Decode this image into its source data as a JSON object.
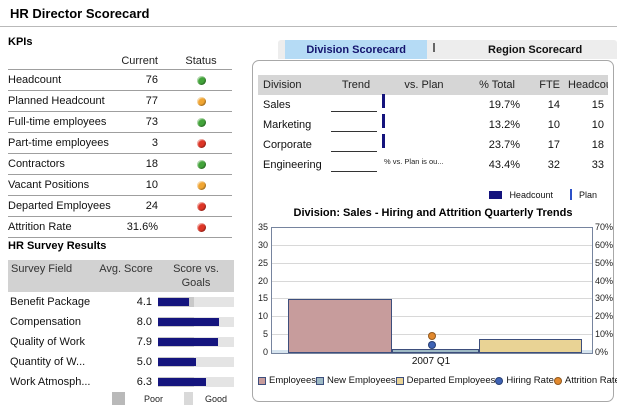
{
  "title": "HR Director Scorecard",
  "status_colors": {
    "green": "#43a33a",
    "yellow": "#f0a532",
    "red": "#dd3526"
  },
  "accent": {
    "tab_active_bg": "#b5dbf5",
    "bar_navy": "#15157e",
    "plan_blue": "#2b50c8"
  },
  "kpis": {
    "heading": "KPIs",
    "columns": {
      "current": "Current",
      "status": "Status"
    },
    "rows": [
      {
        "label": "Headcount",
        "current": "76",
        "status": "green"
      },
      {
        "label": "Planned Headcount",
        "current": "77",
        "status": "yellow"
      },
      {
        "label": "Full-time employees",
        "current": "73",
        "status": "green"
      },
      {
        "label": "Part-time employees",
        "current": "3",
        "status": "red"
      },
      {
        "label": "Contractors",
        "current": "18",
        "status": "green"
      },
      {
        "label": "Vacant Positions",
        "current": "10",
        "status": "yellow"
      },
      {
        "label": "Departed Employees",
        "current": "24",
        "status": "red"
      },
      {
        "label": "Attrition Rate",
        "current": "31.6%",
        "status": "red"
      }
    ]
  },
  "survey": {
    "heading": "HR Survey Results",
    "columns": [
      "Survey Field",
      "Avg. Score",
      "Score vs. Goals"
    ],
    "scale": {
      "min_label": "Poor",
      "max_label": "Good",
      "max": 10
    },
    "rows": [
      {
        "label": "Benefit Package",
        "score": "4.1"
      },
      {
        "label": "Compensation",
        "score": "8.0"
      },
      {
        "label": "Quality of Work",
        "score": "7.9"
      },
      {
        "label": "Quantity of W...",
        "score": "5.0"
      },
      {
        "label": "Work Atmosph...",
        "score": "6.3"
      }
    ]
  },
  "tabs": [
    {
      "label": "Division Scorecard",
      "active": true
    },
    {
      "label": "Region Scorecard",
      "active": false
    }
  ],
  "division_table": {
    "columns": [
      "Division",
      "Trend",
      "vs. Plan",
      "% Total",
      "FTE",
      "Headcoun"
    ],
    "rows": [
      {
        "division": "Sales",
        "vs_plan": {
          "bar": 0.6,
          "tick": 0.58
        },
        "pct_total": "19.7%",
        "fte": "14",
        "headcount": "15"
      },
      {
        "division": "Marketing",
        "vs_plan": {
          "bar": 0.92,
          "tick": 0.63
        },
        "pct_total": "13.2%",
        "fte": "10",
        "headcount": "10"
      },
      {
        "division": "Corporate",
        "vs_plan": {
          "bar": 0.57,
          "tick": 0.63
        },
        "pct_total": "23.7%",
        "fte": "17",
        "headcount": "18"
      },
      {
        "division": "Engineering",
        "vs_plan_note": "% vs. Plan is ou...",
        "pct_total": "43.4%",
        "fte": "32",
        "headcount": "33"
      }
    ],
    "legend": {
      "headcount_label": "Headcount",
      "plan_label": "Plan"
    }
  },
  "chart_data": {
    "type": "bar",
    "title": "Division: Sales - Hiring and Attrition Quarterly Trends",
    "categories": [
      "2007 Q1"
    ],
    "series": [
      {
        "name": "Employees",
        "kind": "bar",
        "axis": "left",
        "values": [
          15
        ],
        "color": "#c79c9c"
      },
      {
        "name": "New Employees",
        "kind": "bar",
        "axis": "left",
        "values": [
          1
        ],
        "color": "#9db9c4"
      },
      {
        "name": "Departed Employees",
        "kind": "bar",
        "axis": "left",
        "values": [
          4
        ],
        "color": "#e9d395"
      },
      {
        "name": "Hiring Rate",
        "kind": "point",
        "axis": "right",
        "values": [
          4.5
        ],
        "color": "#3f63b5"
      },
      {
        "name": "Attrition Rate",
        "kind": "point",
        "axis": "right",
        "values": [
          9.5
        ],
        "color": "#e2892e"
      }
    ],
    "left_axis": {
      "min": 0,
      "max": 35,
      "step": 5
    },
    "right_axis": {
      "min": 0,
      "max": 70,
      "step": 10,
      "suffix": "%"
    },
    "grid": true,
    "legend_position": "bottom"
  }
}
